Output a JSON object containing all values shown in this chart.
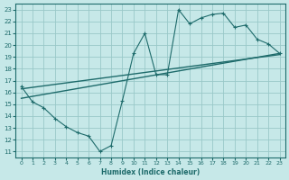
{
  "xlabel": "Humidex (Indice chaleur)",
  "xlim": [
    -0.5,
    23.5
  ],
  "ylim": [
    10.5,
    23.5
  ],
  "xticks": [
    0,
    1,
    2,
    3,
    4,
    5,
    6,
    7,
    8,
    9,
    10,
    11,
    12,
    13,
    14,
    15,
    16,
    17,
    18,
    19,
    20,
    21,
    22,
    23
  ],
  "yticks": [
    11,
    12,
    13,
    14,
    15,
    16,
    17,
    18,
    19,
    20,
    21,
    22,
    23
  ],
  "bg_color": "#c6e8e8",
  "grid_color": "#99c8c8",
  "line_color": "#1e6b6b",
  "line1_x": [
    0,
    1,
    2,
    3,
    4,
    5,
    6,
    7,
    8,
    9,
    10,
    11,
    12,
    13,
    14,
    15,
    16,
    17,
    18,
    19,
    20,
    21,
    22,
    23
  ],
  "line1_y": [
    16.5,
    15.2,
    14.7,
    13.8,
    13.1,
    12.6,
    12.3,
    11.0,
    11.5,
    15.3,
    19.3,
    21.0,
    17.5,
    17.5,
    23.0,
    21.8,
    22.3,
    22.6,
    22.7,
    21.5,
    21.7,
    20.5,
    20.1,
    19.3
  ],
  "line2_x": [
    0,
    23
  ],
  "line2_y": [
    15.5,
    19.3
  ],
  "line3_x": [
    0,
    23
  ],
  "line3_y": [
    16.3,
    19.2
  ],
  "marker": "+"
}
